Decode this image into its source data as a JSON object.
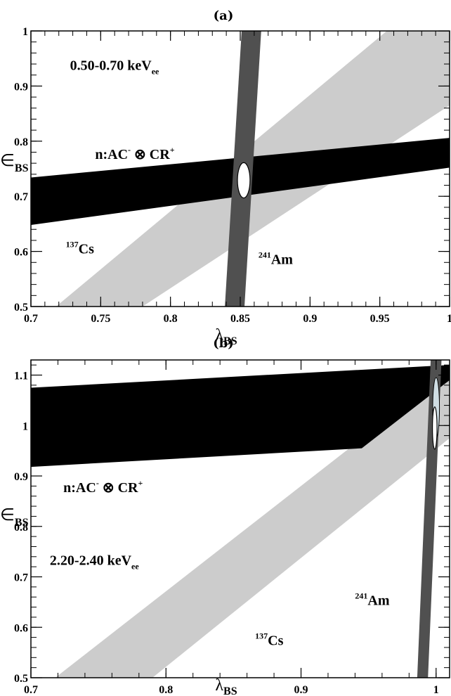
{
  "chart_data": [
    {
      "type": "area",
      "title": "(a)",
      "xlim": [
        0.7,
        1.0
      ],
      "ylim": [
        0.5,
        1.0
      ],
      "xticks": [
        0.7,
        0.75,
        0.8,
        0.85,
        0.9,
        0.95,
        1.0
      ],
      "xtick_labels": [
        "0.7",
        "0.75",
        "0.8",
        "0.85",
        "0.9",
        "0.95",
        "1"
      ],
      "yticks": [
        0.5,
        0.6,
        0.7,
        0.8,
        0.9,
        1.0
      ],
      "ytick_labels": [
        "0.5",
        "0.6",
        "0.7",
        "0.8",
        "0.9",
        "1"
      ],
      "xlabel": {
        "main": "λ",
        "sub": "BS"
      },
      "ylabel": {
        "main": "∈",
        "sub": "BS"
      },
      "grid": false,
      "colors": {
        "cs137": "#cccccc",
        "ncap": "#000000",
        "am241": "#505050",
        "ellipse": "#ffffff"
      },
      "bands": [
        {
          "id": "cs137",
          "label": {
            "sup": "137",
            "text": "Cs"
          },
          "polygon": [
            [
              0.718,
              0.5
            ],
            [
              0.78,
              0.5
            ],
            [
              1.0,
              0.865
            ],
            [
              1.0,
              1.0
            ],
            [
              0.955,
              1.0
            ]
          ]
        },
        {
          "id": "ncap",
          "label": {
            "text": "n:AC",
            "sup1": "-",
            "mid": " ⊗ CR",
            "sup2": "+"
          },
          "polygon": [
            [
              0.7,
              0.648
            ],
            [
              1.0,
              0.752
            ],
            [
              1.0,
              0.806
            ],
            [
              0.7,
              0.734
            ]
          ]
        },
        {
          "id": "am241",
          "label": {
            "sup": "241",
            "text": "Am"
          },
          "polygon": [
            [
              0.839,
              0.5
            ],
            [
              0.853,
              0.5
            ],
            [
              0.865,
              1.0
            ],
            [
              0.851,
              1.0
            ]
          ]
        }
      ],
      "ellipse": {
        "cx": 0.8525,
        "cy": 0.729,
        "rx": 0.0045,
        "ry": 0.032
      },
      "annotation": {
        "text": "0.50-0.70 keV",
        "sub": "ee",
        "x": 0.728,
        "y": 0.929
      },
      "label_positions": {
        "ncap": [
          0.746,
          0.768
        ],
        "cs137": [
          0.725,
          0.596
        ],
        "am241": [
          0.863,
          0.577
        ]
      }
    },
    {
      "type": "area",
      "title": "(b)",
      "xlim": [
        0.7,
        1.01
      ],
      "ylim": [
        0.5,
        1.13
      ],
      "xticks": [
        0.7,
        0.8,
        0.9,
        1.0
      ],
      "xtick_labels": [
        "0.7",
        "0.8",
        "0.9",
        "1"
      ],
      "yticks": [
        0.5,
        0.6,
        0.7,
        0.8,
        0.9,
        1.0,
        1.1
      ],
      "ytick_labels": [
        "0.5",
        "0.6",
        "0.7",
        "0.8",
        "0.9",
        "1",
        "1.1"
      ],
      "xlabel": {
        "main": "λ",
        "sub": "BS"
      },
      "ylabel": {
        "main": "∈",
        "sub": "BS"
      },
      "grid": false,
      "colors": {
        "cs137": "#cccccc",
        "ncap": "#000000",
        "am241": "#505050",
        "ellipse": "#ffffff",
        "ellipse_outer": "#cfdde3"
      },
      "bands": [
        {
          "id": "cs137",
          "label": {
            "sup": "137",
            "text": "Cs"
          },
          "polygon": [
            [
              0.718,
              0.5
            ],
            [
              0.79,
              0.5
            ],
            [
              1.01,
              0.975
            ],
            [
              1.01,
              1.11
            ]
          ]
        },
        {
          "id": "ncap",
          "label": {
            "text": "n:AC",
            "sup1": "-",
            "mid": " ⊗ CR",
            "sup2": "+"
          },
          "polygon": [
            [
              0.7,
              0.918
            ],
            [
              0.945,
              0.955
            ],
            [
              1.01,
              1.09
            ],
            [
              1.01,
              1.12
            ],
            [
              0.7,
              1.075
            ]
          ]
        },
        {
          "id": "am241",
          "label": {
            "sup": "241",
            "text": "Am"
          },
          "polygon": [
            [
              0.986,
              0.5
            ],
            [
              0.994,
              0.5
            ],
            [
              1.004,
              1.13
            ],
            [
              0.996,
              1.13
            ]
          ]
        }
      ],
      "ellipse": {
        "cx": 0.999,
        "cy": 0.995,
        "rx": 0.0017,
        "ry": 0.042
      },
      "ellipse_outer": {
        "cx": 1.0,
        "cy": 1.035,
        "rx": 0.0025,
        "ry": 0.06
      },
      "annotation": {
        "text": "2.20-2.40 keV",
        "sub": "ee",
        "x": 0.714,
        "y": 0.724
      },
      "label_positions": {
        "ncap": [
          0.724,
          0.868
        ],
        "cs137": [
          0.866,
          0.565
        ],
        "am241": [
          0.94,
          0.644
        ]
      }
    }
  ]
}
